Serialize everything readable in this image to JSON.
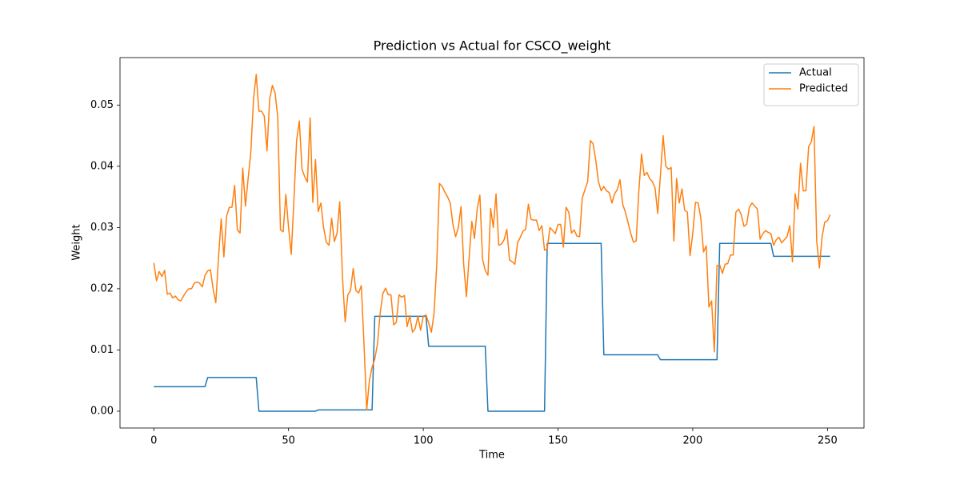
{
  "chart_data": {
    "type": "line",
    "title": "Prediction vs Actual for CSCO_weight",
    "xlabel": "Time",
    "ylabel": "Weight",
    "x": [
      0,
      1,
      2,
      3,
      4,
      5,
      6,
      7,
      8,
      9,
      10,
      11,
      12,
      13,
      14,
      15,
      16,
      17,
      18,
      19,
      20,
      21,
      22,
      23,
      24,
      25,
      26,
      27,
      28,
      29,
      30,
      31,
      32,
      33,
      34,
      35,
      36,
      37,
      38,
      39,
      40,
      41,
      42,
      43,
      44,
      45,
      46,
      47,
      48,
      49,
      50,
      51,
      52,
      53,
      54,
      55,
      56,
      57,
      58,
      59,
      60,
      61,
      62,
      63,
      64,
      65,
      66,
      67,
      68,
      69,
      70,
      71,
      72,
      73,
      74,
      75,
      76,
      77,
      78,
      79,
      80,
      81,
      82,
      83,
      84,
      85,
      86,
      87,
      88,
      89,
      90,
      91,
      92,
      93,
      94,
      95,
      96,
      97,
      98,
      99,
      100,
      101,
      102,
      103,
      104,
      105,
      106,
      107,
      108,
      109,
      110,
      111,
      112,
      113,
      114,
      115,
      116,
      117,
      118,
      119,
      120,
      121,
      122,
      123,
      124,
      125,
      126,
      127,
      128,
      129,
      130,
      131,
      132,
      133,
      134,
      135,
      136,
      137,
      138,
      139,
      140,
      141,
      142,
      143,
      144,
      145,
      146,
      147,
      148,
      149,
      150,
      151,
      152,
      153,
      154,
      155,
      156,
      157,
      158,
      159,
      160,
      161,
      162,
      163,
      164,
      165,
      166,
      167,
      168,
      169,
      170,
      171,
      172,
      173,
      174,
      175,
      176,
      177,
      178,
      179,
      180,
      181,
      182,
      183,
      184,
      185,
      186,
      187,
      188,
      189,
      190,
      191,
      192,
      193,
      194,
      195,
      196,
      197,
      198,
      199,
      200,
      201,
      202,
      203,
      204,
      205,
      206,
      207,
      208,
      209,
      210,
      211,
      212,
      213,
      214,
      215,
      216,
      217,
      218,
      219,
      220,
      221,
      222,
      223,
      224,
      225,
      226,
      227,
      228,
      229,
      230,
      231,
      232,
      233,
      234,
      235,
      236,
      237,
      238,
      239,
      240,
      241,
      242,
      243,
      244,
      245,
      246,
      247,
      248,
      249,
      250,
      251
    ],
    "series": [
      {
        "name": "Actual",
        "color": "#1f77b4",
        "values": [
          0.004,
          0.004,
          0.004,
          0.004,
          0.004,
          0.004,
          0.004,
          0.004,
          0.004,
          0.004,
          0.004,
          0.004,
          0.004,
          0.004,
          0.004,
          0.004,
          0.004,
          0.004,
          0.004,
          0.004,
          0.0055,
          0.0055,
          0.0055,
          0.0055,
          0.0055,
          0.0055,
          0.0055,
          0.0055,
          0.0055,
          0.0055,
          0.0055,
          0.0055,
          0.0055,
          0.0055,
          0.0055,
          0.0055,
          0.0055,
          0.0055,
          0.0055,
          0,
          0,
          0,
          0,
          0,
          0,
          0,
          0,
          0,
          0,
          0,
          0,
          0,
          0,
          0,
          0,
          0,
          0,
          0,
          0,
          0,
          0,
          0.0002,
          0.0002,
          0.0002,
          0.0002,
          0.0002,
          0.0002,
          0.0002,
          0.0002,
          0.0002,
          0.0002,
          0.0002,
          0.0002,
          0.0002,
          0.0002,
          0.0002,
          0.0002,
          0.0002,
          0.0002,
          0.0002,
          0.0002,
          0.0002,
          0.0155,
          0.0155,
          0.0155,
          0.0155,
          0.0155,
          0.0155,
          0.0155,
          0.0155,
          0.0155,
          0.0155,
          0.0155,
          0.0155,
          0.0155,
          0.0155,
          0.0155,
          0.0155,
          0.0155,
          0.0155,
          0.0155,
          0.0155,
          0.0106,
          0.0106,
          0.0106,
          0.0106,
          0.0106,
          0.0106,
          0.0106,
          0.0106,
          0.0106,
          0.0106,
          0.0106,
          0.0106,
          0.0106,
          0.0106,
          0.0106,
          0.0106,
          0.0106,
          0.0106,
          0.0106,
          0.0106,
          0.0106,
          0.0106,
          0,
          0,
          0,
          0,
          0,
          0,
          0,
          0,
          0,
          0,
          0,
          0,
          0,
          0,
          0,
          0,
          0,
          0,
          0,
          0,
          0,
          0,
          0.0274,
          0.0274,
          0.0274,
          0.0274,
          0.0274,
          0.0274,
          0.0274,
          0.0274,
          0.0274,
          0.0274,
          0.0274,
          0.0274,
          0.0274,
          0.0274,
          0.0274,
          0.0274,
          0.0274,
          0.0274,
          0.0274,
          0.0274,
          0.0274,
          0.0092,
          0.0092,
          0.0092,
          0.0092,
          0.0092,
          0.0092,
          0.0092,
          0.0092,
          0.0092,
          0.0092,
          0.0092,
          0.0092,
          0.0092,
          0.0092,
          0.0092,
          0.0092,
          0.0092,
          0.0092,
          0.0092,
          0.0092,
          0.0092,
          0.0084,
          0.0084,
          0.0084,
          0.0084,
          0.0084,
          0.0084,
          0.0084,
          0.0084,
          0.0084,
          0.0084,
          0.0084,
          0.0084,
          0.0084,
          0.0084,
          0.0084,
          0.0084,
          0.0084,
          0.0084,
          0.0084,
          0.0084,
          0.0084,
          0.0084,
          0.0274,
          0.0274,
          0.0274,
          0.0274,
          0.0274,
          0.0274,
          0.0274,
          0.0274,
          0.0274,
          0.0274,
          0.0274,
          0.0274,
          0.0274,
          0.0274,
          0.0274,
          0.0274,
          0.0274,
          0.0274,
          0.0274,
          0.0274,
          0.0253,
          0.0253,
          0.0253,
          0.0253,
          0.0253,
          0.0253,
          0.0253,
          0.0253,
          0.0253,
          0.0253,
          0.0253,
          0.0253,
          0.0253,
          0.0253,
          0.0253,
          0.0253,
          0.0253,
          0.0253,
          0.0253,
          0.0253,
          0.0253,
          0.0253
        ]
      },
      {
        "name": "Predicted",
        "color": "#ff7f0e",
        "values": [
          0.0242,
          0.0213,
          0.0228,
          0.022,
          0.023,
          0.0191,
          0.0193,
          0.0185,
          0.0188,
          0.0182,
          0.018,
          0.0188,
          0.0195,
          0.02,
          0.02,
          0.0209,
          0.0211,
          0.0209,
          0.0203,
          0.0222,
          0.0229,
          0.0231,
          0.02,
          0.0177,
          0.025,
          0.0314,
          0.0252,
          0.0318,
          0.0333,
          0.0333,
          0.0369,
          0.0296,
          0.0291,
          0.0397,
          0.0335,
          0.038,
          0.0423,
          0.051,
          0.055,
          0.049,
          0.049,
          0.0482,
          0.0425,
          0.051,
          0.0532,
          0.052,
          0.048,
          0.0296,
          0.0293,
          0.0354,
          0.03,
          0.0256,
          0.0346,
          0.0443,
          0.0474,
          0.0395,
          0.0383,
          0.0374,
          0.0479,
          0.0341,
          0.0411,
          0.0326,
          0.034,
          0.03,
          0.0276,
          0.0271,
          0.0315,
          0.0277,
          0.0291,
          0.0342,
          0.022,
          0.0146,
          0.019,
          0.0197,
          0.0233,
          0.0197,
          0.0193,
          0.0205,
          0.011,
          0.0002,
          0.005,
          0.0072,
          0.0085,
          0.011,
          0.016,
          0.0192,
          0.0201,
          0.019,
          0.019,
          0.0141,
          0.0145,
          0.019,
          0.0186,
          0.0189,
          0.0138,
          0.0156,
          0.0129,
          0.0135,
          0.0155,
          0.0132,
          0.0155,
          0.0157,
          0.0144,
          0.0129,
          0.016,
          0.024,
          0.0372,
          0.0367,
          0.0358,
          0.035,
          0.034,
          0.0305,
          0.0285,
          0.03,
          0.0334,
          0.024,
          0.0187,
          0.025,
          0.031,
          0.0282,
          0.033,
          0.0353,
          0.0248,
          0.023,
          0.0222,
          0.0331,
          0.03,
          0.0355,
          0.0271,
          0.0273,
          0.028,
          0.0297,
          0.0247,
          0.0244,
          0.024,
          0.0275,
          0.0284,
          0.0294,
          0.0297,
          0.0338,
          0.0313,
          0.0312,
          0.0312,
          0.0295,
          0.0303,
          0.0263,
          0.0265,
          0.03,
          0.0295,
          0.029,
          0.0305,
          0.0305,
          0.0268,
          0.0333,
          0.0325,
          0.0291,
          0.0296,
          0.0286,
          0.0285,
          0.0348,
          0.0362,
          0.0375,
          0.0442,
          0.0437,
          0.041,
          0.0375,
          0.036,
          0.0367,
          0.036,
          0.0357,
          0.034,
          0.0355,
          0.0362,
          0.0378,
          0.0338,
          0.0325,
          0.0308,
          0.029,
          0.0276,
          0.0278,
          0.036,
          0.042,
          0.0385,
          0.039,
          0.038,
          0.0375,
          0.0365,
          0.0323,
          0.0385,
          0.045,
          0.04,
          0.0395,
          0.0398,
          0.0278,
          0.038,
          0.034,
          0.0363,
          0.0328,
          0.0325,
          0.0254,
          0.029,
          0.0341,
          0.034,
          0.0315,
          0.026,
          0.027,
          0.017,
          0.018,
          0.0097,
          0.0238,
          0.0239,
          0.0225,
          0.024,
          0.0241,
          0.0255,
          0.0255,
          0.0325,
          0.033,
          0.0321,
          0.0302,
          0.0305,
          0.0333,
          0.034,
          0.0335,
          0.033,
          0.0281,
          0.029,
          0.0295,
          0.0292,
          0.029,
          0.0271,
          0.028,
          0.0284,
          0.0275,
          0.028,
          0.0285,
          0.0303,
          0.0244,
          0.0355,
          0.033,
          0.0405,
          0.036,
          0.036,
          0.0432,
          0.044,
          0.0465,
          0.0278,
          0.0234,
          0.0285,
          0.0309,
          0.0311,
          0.0321
        ]
      }
    ],
    "xlim": [
      -12.55,
      263.55
    ],
    "xticks": [
      0,
      50,
      100,
      150,
      200,
      250
    ],
    "ylim": [
      -0.00275,
      0.05775
    ],
    "yticks": [
      {
        "value": 0,
        "label": "0.00"
      },
      {
        "value": 0.01,
        "label": "0.01"
      },
      {
        "value": 0.02,
        "label": "0.02"
      },
      {
        "value": 0.03,
        "label": "0.03"
      },
      {
        "value": 0.04,
        "label": "0.04"
      },
      {
        "value": 0.05,
        "label": "0.05"
      }
    ],
    "grid": false,
    "legend": "upper right"
  }
}
